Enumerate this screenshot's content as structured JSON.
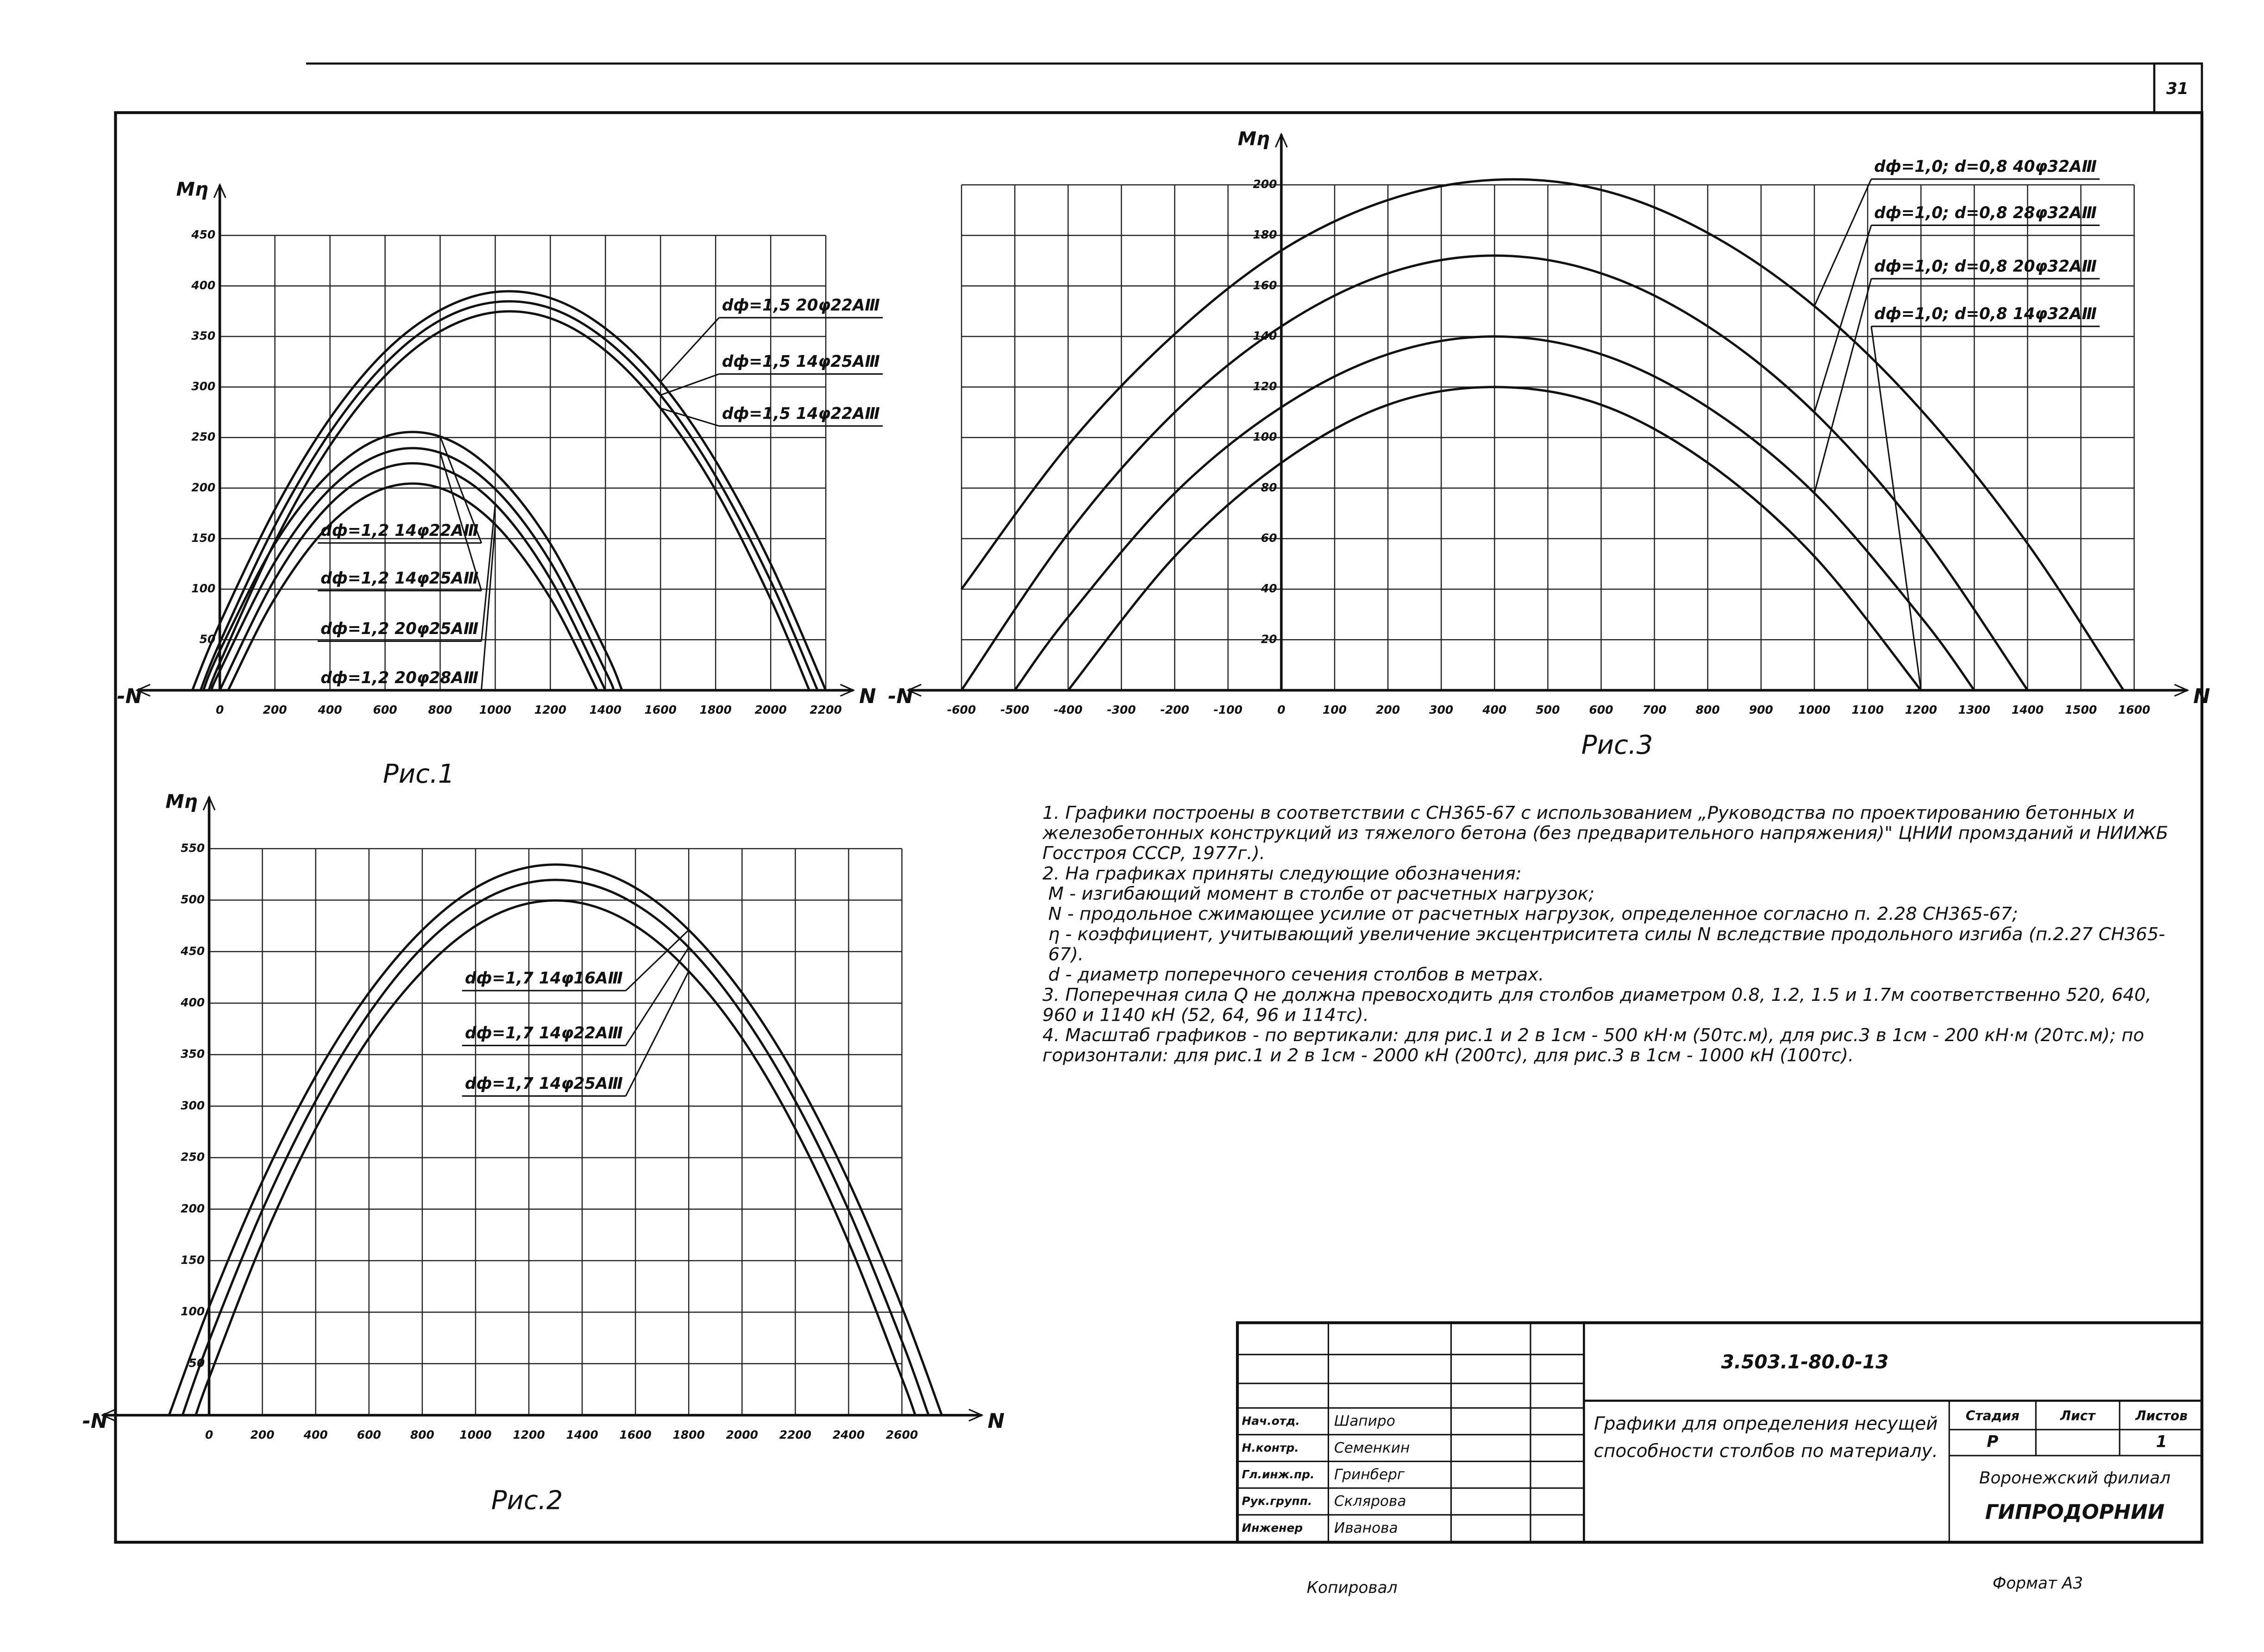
{
  "page_number": "31",
  "chart_data": [
    {
      "type": "line",
      "caption": "Рис.1",
      "y_label": "Mη",
      "x_label": "N",
      "x_neg_label": "-N",
      "xlim": [
        -300,
        2300
      ],
      "ylim": [
        0,
        500
      ],
      "xticks": [
        0,
        200,
        400,
        600,
        800,
        1000,
        1200,
        1400,
        1600,
        1800,
        2000,
        2200
      ],
      "yticks": [
        50,
        100,
        150,
        200,
        250,
        300,
        350,
        400,
        450
      ],
      "grid": true,
      "series": [
        {
          "name": "dф=1,5 20φ22АⅢ",
          "color": "#000000",
          "x": [
            -100,
            0,
            200,
            400,
            600,
            800,
            1000,
            1200,
            1400,
            1600,
            1800,
            2000,
            2200
          ],
          "values": [
            0,
            66,
            179,
            269,
            335,
            376,
            394,
            388,
            358,
            305,
            227,
            125,
            0
          ]
        },
        {
          "name": "dф=1,5 14φ25АⅢ",
          "color": "#000000",
          "x": [
            -70,
            0,
            200,
            400,
            600,
            800,
            1000,
            1200,
            1400,
            1600,
            1800,
            2000,
            2170
          ],
          "values": [
            0,
            47,
            163,
            255,
            323,
            366,
            384,
            378,
            347,
            292,
            212,
            108,
            0
          ]
        },
        {
          "name": "dф=1,5 14φ22АⅢ",
          "color": "#000000",
          "x": [
            -40,
            0,
            200,
            400,
            600,
            800,
            1000,
            1200,
            1400,
            1600,
            1800,
            2000,
            2140
          ],
          "values": [
            0,
            27,
            147,
            242,
            311,
            355,
            374,
            368,
            336,
            279,
            198,
            90,
            0
          ]
        },
        {
          "name": "dф=1,2 14φ22АⅢ",
          "color": "#000000",
          "x": [
            -60,
            0,
            200,
            400,
            600,
            800,
            1000,
            1200,
            1400,
            1460
          ],
          "values": [
            0,
            39,
            145,
            215,
            251,
            251,
            215,
            145,
            39,
            0
          ]
        },
        {
          "name": "dф=1,2 14φ25АⅢ",
          "color": "#000000",
          "x": [
            -30,
            0,
            200,
            400,
            600,
            800,
            1000,
            1200,
            1400,
            1430
          ],
          "values": [
            0,
            19,
            127,
            199,
            235,
            235,
            199,
            127,
            19,
            0
          ]
        },
        {
          "name": "dф=1,2 20φ25АⅢ",
          "color": "#000000",
          "x": [
            0,
            200,
            400,
            600,
            800,
            1000,
            1200,
            1400
          ],
          "values": [
            0,
            110,
            184,
            220,
            220,
            184,
            110,
            0
          ]
        },
        {
          "name": "dф=1,2 20φ28АⅢ",
          "color": "#000000",
          "x": [
            30,
            200,
            400,
            600,
            800,
            1000,
            1200,
            1370
          ],
          "values": [
            0,
            91,
            164,
            200,
            200,
            164,
            91,
            0
          ]
        }
      ]
    },
    {
      "type": "line",
      "caption": "Рис.3",
      "y_label": "Mη",
      "x_label": "N",
      "x_neg_label": "-N",
      "xlim": [
        -700,
        1700
      ],
      "ylim": [
        0,
        220
      ],
      "xticks": [
        -600,
        -500,
        -400,
        -300,
        -200,
        -100,
        0,
        100,
        200,
        300,
        400,
        500,
        600,
        700,
        800,
        900,
        1000,
        1100,
        1200,
        1300,
        1400,
        1500,
        1600
      ],
      "yticks": [
        20,
        40,
        60,
        80,
        100,
        120,
        140,
        160,
        180,
        200
      ],
      "grid": true,
      "series": [
        {
          "name": "dф=1,0; d=0,8 40φ32АⅢ",
          "color": "#000000",
          "x": [
            -600,
            -400,
            -200,
            0,
            200,
            400,
            600,
            800,
            1000,
            1200,
            1400,
            1580
          ],
          "values": [
            40,
            97,
            141,
            174,
            194,
            202,
            198,
            181,
            152,
            111,
            58,
            0
          ]
        },
        {
          "name": "dф=1,0; d=0,8 28φ32АⅢ",
          "color": "#000000",
          "x": [
            -600,
            -400,
            -200,
            0,
            200,
            400,
            600,
            800,
            1000,
            1200,
            1400
          ],
          "values": [
            0,
            62,
            110,
            144,
            165,
            172,
            165,
            144,
            110,
            62,
            0
          ]
        },
        {
          "name": "dф=1,0; d=0,8 20φ32АⅢ",
          "color": "#000000",
          "x": [
            -500,
            -400,
            -200,
            0,
            200,
            400,
            600,
            800,
            1000,
            1200,
            1300
          ],
          "values": [
            0,
            29,
            78,
            112,
            133,
            140,
            133,
            112,
            78,
            29,
            0
          ]
        },
        {
          "name": "dф=1,0; d=0,8 14φ32АⅢ",
          "color": "#000000",
          "x": [
            -400,
            -200,
            0,
            200,
            400,
            600,
            800,
            1000,
            1200
          ],
          "values": [
            0,
            53,
            90,
            113,
            120,
            113,
            90,
            53,
            0
          ]
        }
      ]
    },
    {
      "type": "line",
      "caption": "Рис.2",
      "y_label": "Mη",
      "x_label": "N",
      "x_neg_label": "-N",
      "xlim": [
        -400,
        2900
      ],
      "ylim": [
        0,
        600
      ],
      "xticks": [
        0,
        200,
        400,
        600,
        800,
        1000,
        1200,
        1400,
        1600,
        1800,
        2000,
        2200,
        2400,
        2600
      ],
      "yticks": [
        50,
        100,
        150,
        200,
        250,
        300,
        350,
        400,
        450,
        500,
        550
      ],
      "grid": true,
      "series": [
        {
          "name": "dф=1,7 14φ16АⅢ",
          "color": "#000000",
          "x": [
            -150,
            0,
            200,
            400,
            600,
            800,
            1000,
            1200,
            1400,
            1600,
            1800,
            2000,
            2200,
            2400,
            2600,
            2750
          ],
          "values": [
            0,
            105,
            227,
            329,
            410,
            471,
            512,
            532,
            532,
            512,
            471,
            410,
            329,
            227,
            105,
            0
          ]
        },
        {
          "name": "dф=1,7 14φ22АⅢ",
          "color": "#000000",
          "x": [
            -100,
            0,
            200,
            400,
            600,
            800,
            1000,
            1200,
            1400,
            1600,
            1800,
            2000,
            2200,
            2400,
            2600,
            2700
          ],
          "values": [
            0,
            72,
            199,
            305,
            390,
            454,
            496,
            517,
            517,
            496,
            454,
            390,
            305,
            199,
            72,
            0
          ]
        },
        {
          "name": "dф=1,7 14φ25АⅢ",
          "color": "#000000",
          "x": [
            -50,
            0,
            200,
            400,
            600,
            800,
            1000,
            1200,
            1400,
            1600,
            1800,
            2000,
            2200,
            2400,
            2600,
            2650
          ],
          "values": [
            0,
            36,
            168,
            278,
            366,
            431,
            475,
            497,
            497,
            475,
            431,
            366,
            278,
            168,
            36,
            0
          ]
        }
      ]
    }
  ],
  "notes": [
    "1. Графики построены в соответствии с СН365-67 с использованием „Руководства по проектированию бетонных и железобетонных конструкций из тяжелого бетона (без предварительного напряжения)\" ЦНИИ промзданий и НИИЖБ Госстроя СССР, 1977г.).",
    "2. На графиках приняты следующие обозначения:",
    "M - изгибающий момент в столбе от расчетных нагрузок;",
    "N - продольное сжимающее усилие от расчетных нагрузок, определенное согласно п. 2.28 СН365-67;",
    "η - коэффициент, учитывающий увеличение эксцентриситета силы N вследствие продольного изгиба (п.2.27 СН365-67).",
    "d - диаметр поперечного сечения столбов в метрах.",
    "3. Поперечная сила Q не должна превосходить для столбов диаметром 0.8, 1.2, 1.5 и 1.7м соответственно 520, 640, 960 и 1140 кН (52, 64, 96 и 114тс).",
    "4. Масштаб графиков - по вертикали: для рис.1 и 2 в 1см - 500 кН·м (50тс.м), для рис.3 в 1см - 200 кН·м (20тс.м); по горизонтали: для рис.1 и 2 в 1см - 2000 кН (200тс), для рис.3 в 1см - 1000 кН (100тс)."
  ],
  "title_block": {
    "designation": "3.503.1-80.0-13",
    "title": "Графики для определения несущей способности столбов по материалу.",
    "signatures": [
      {
        "role": "Нач.отд.",
        "name": "Шапиро"
      },
      {
        "role": "Н.контр.",
        "name": "Семенкин"
      },
      {
        "role": "Гл.инж.пр.",
        "name": "Гринберг"
      },
      {
        "role": "Рук.групп.",
        "name": "Склярова"
      },
      {
        "role": "Инженер",
        "name": "Иванова"
      }
    ],
    "stage_header": [
      "Стадия",
      "Лист",
      "Листов"
    ],
    "stage": "Р",
    "sheet_count": "1",
    "organization": [
      "Воронежский филиал",
      "ГИПРОДОРНИИ"
    ]
  },
  "footer": {
    "copied": "Копировал",
    "format": "Формат A3"
  }
}
